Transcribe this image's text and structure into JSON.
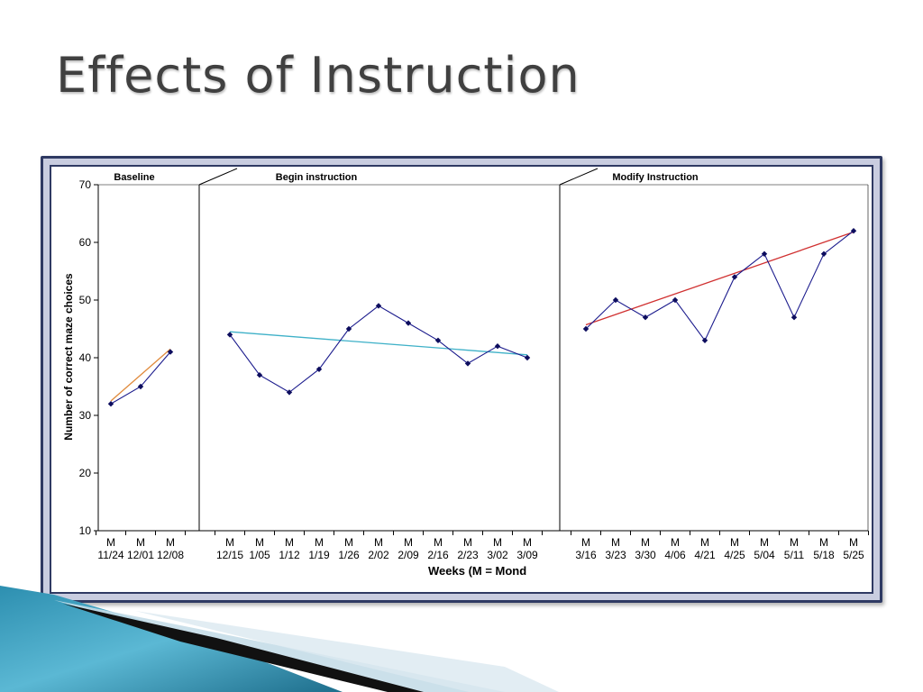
{
  "slide": {
    "title": "Effects of Instruction"
  },
  "chart_data": {
    "type": "line",
    "ylabel": "Number of correct maze choices",
    "xlabel": "Weeks (M = Mond",
    "ylim": [
      10,
      70
    ],
    "yticks": [
      10,
      20,
      30,
      40,
      50,
      60,
      70
    ],
    "grid": false,
    "phases": [
      {
        "label": "Baseline",
        "categories": [
          "M\n11/24",
          "M\n12/01",
          "M\n12/08"
        ],
        "values": [
          32,
          35,
          41
        ],
        "trend": [
          32.5,
          41.5
        ],
        "trend_color": "#e08a3c"
      },
      {
        "label": "Begin instruction",
        "categories": [
          "M\n12/15",
          "M\n1/05",
          "M\n1/12",
          "M\n1/19",
          "M\n1/26",
          "M\n2/02",
          "M\n2/09",
          "M\n2/16",
          "M\n2/23",
          "M\n3/02",
          "M\n3/09"
        ],
        "values": [
          44,
          37,
          34,
          38,
          45,
          49,
          46,
          43,
          39,
          42,
          40
        ],
        "trend": [
          44.5,
          40.5
        ],
        "trend_color": "#3fb1c8"
      },
      {
        "label": "Modify Instruction",
        "categories": [
          "M\n3/16",
          "M\n3/23",
          "M\n3/30",
          "M\n4/06",
          "M\n4/21",
          "M\n4/25",
          "M\n5/04",
          "M\n5/11",
          "M\n5/18",
          "M\n5/25"
        ],
        "values": [
          45,
          50,
          47,
          50,
          43,
          54,
          58,
          47,
          58,
          62
        ],
        "trend": [
          45.7,
          61.8
        ],
        "trend_color": "#d03030"
      }
    ],
    "series_color": "#1a1a8c",
    "marker_color": "#0d0d5e"
  }
}
